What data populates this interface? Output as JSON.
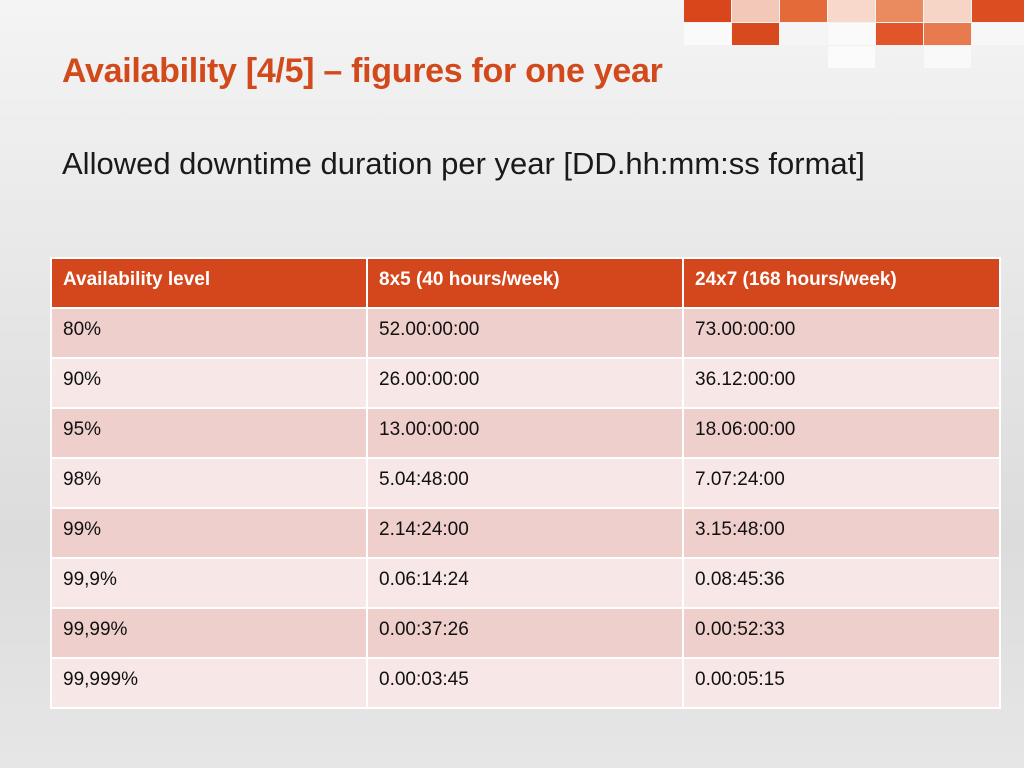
{
  "slide": {
    "title": "Availability [4/5] – figures for one year",
    "subtitle": "Allowed downtime duration per year [DD.hh:mm:ss format]"
  },
  "colors": {
    "accent": "#d24a1c",
    "header_bg": "#d4461b",
    "row_dark": "#eecfcc",
    "row_light": "#f7e7e6"
  },
  "table": {
    "headers": [
      "Availability level",
      "8x5 (40 hours/week)",
      "24x7 (168 hours/week)"
    ],
    "rows": [
      [
        "80%",
        "52.00:00:00",
        "73.00:00:00"
      ],
      [
        "90%",
        "26.00:00:00",
        "36.12:00:00"
      ],
      [
        "95%",
        "13.00:00:00",
        "18.06:00:00"
      ],
      [
        "98%",
        "5.04:48:00",
        "7.07:24:00"
      ],
      [
        "99%",
        "2.14:24:00",
        "3.15:48:00"
      ],
      [
        "99,9%",
        "0.06:14:24",
        "0.08:45:36"
      ],
      [
        "99,99%",
        "0.00:37:26",
        "0.00:52:33"
      ],
      [
        "99,999%",
        "0.00:03:45",
        "0.00:05:15"
      ]
    ]
  }
}
